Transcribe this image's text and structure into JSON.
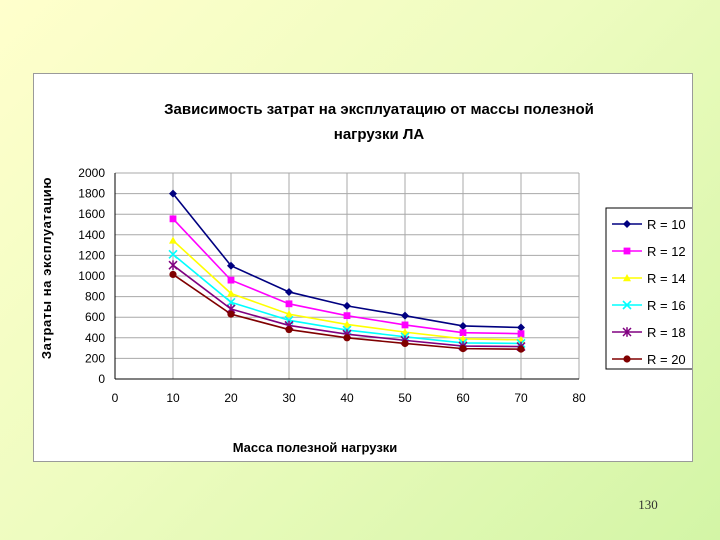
{
  "chart_data": {
    "type": "line",
    "title_lines": [
      "Зависимость затрат на эксплуатацию от массы полезной",
      "нагрузки ЛА"
    ],
    "xlabel": "Масса полезной нагрузки",
    "ylabel": "Затраты на эксплуатацию",
    "xlim": [
      0,
      80
    ],
    "ylim": [
      0,
      2000
    ],
    "xticks": [
      "0",
      "10",
      "20",
      "30",
      "40",
      "50",
      "60",
      "70",
      "80"
    ],
    "yticks": [
      "0",
      "200",
      "400",
      "600",
      "800",
      "1000",
      "1200",
      "1400",
      "1600",
      "1800",
      "2000"
    ],
    "x": [
      10,
      20,
      30,
      40,
      50,
      60,
      70
    ],
    "grid": true,
    "legend_position": "right",
    "series": [
      {
        "name": "R =  10",
        "color": "#000080",
        "marker": "diamond",
        "values": [
          1800,
          1100,
          845,
          710,
          615,
          515,
          500
        ]
      },
      {
        "name": "R =  12",
        "color": "#ff00ff",
        "marker": "square",
        "values": [
          1555,
          960,
          730,
          615,
          525,
          450,
          440
        ]
      },
      {
        "name": "R =  14",
        "color": "#ffff00",
        "marker": "triangle",
        "values": [
          1345,
          830,
          630,
          530,
          455,
          390,
          380
        ]
      },
      {
        "name": "R =  16",
        "color": "#00ffff",
        "marker": "x",
        "values": [
          1210,
          745,
          570,
          475,
          410,
          350,
          345
        ]
      },
      {
        "name": "R =  18",
        "color": "#800080",
        "marker": "star",
        "values": [
          1105,
          680,
          520,
          435,
          375,
          320,
          315
        ]
      },
      {
        "name": "R =  20",
        "color": "#800000",
        "marker": "circle",
        "values": [
          1015,
          630,
          480,
          400,
          345,
          295,
          290
        ]
      }
    ]
  },
  "page_number": "130"
}
